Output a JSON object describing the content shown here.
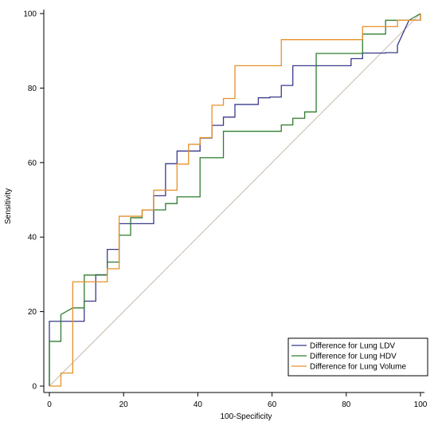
{
  "chart_data": {
    "type": "line",
    "title": "",
    "xlabel": "100-Specificity",
    "ylabel": "Sensitivity",
    "xlim": [
      0,
      100
    ],
    "ylim": [
      0,
      100
    ],
    "x_ticks": [
      0,
      20,
      40,
      60,
      80,
      100
    ],
    "y_ticks": [
      0,
      20,
      40,
      60,
      80,
      100
    ],
    "grid": false,
    "legend_position": "bottom-right",
    "reference_line": {
      "from": [
        0,
        0
      ],
      "to": [
        100,
        100
      ],
      "color": "#c8b8a8"
    },
    "series": [
      {
        "name": "Difference for Lung LDV",
        "color": "#3a3a8c",
        "points": [
          [
            0,
            0
          ],
          [
            0,
            17.4
          ],
          [
            9.4,
            17.4
          ],
          [
            9.4,
            22.8
          ],
          [
            12.5,
            22.8
          ],
          [
            12.5,
            29.9
          ],
          [
            15.6,
            29.9
          ],
          [
            15.6,
            36.7
          ],
          [
            18.8,
            36.7
          ],
          [
            18.8,
            43.6
          ],
          [
            28.1,
            43.6
          ],
          [
            28.1,
            51.1
          ],
          [
            31.3,
            51.1
          ],
          [
            31.3,
            59.7
          ],
          [
            34.4,
            59.7
          ],
          [
            34.4,
            63.1
          ],
          [
            40.6,
            63.1
          ],
          [
            40.6,
            66.6
          ],
          [
            43.8,
            66.6
          ],
          [
            43.8,
            70.0
          ],
          [
            46.9,
            70.0
          ],
          [
            46.9,
            72.2
          ],
          [
            50.0,
            72.2
          ],
          [
            50.0,
            75.6
          ],
          [
            56.3,
            75.6
          ],
          [
            56.3,
            77.4
          ],
          [
            59.4,
            77.4
          ],
          [
            59.4,
            77.6
          ],
          [
            62.5,
            77.6
          ],
          [
            62.5,
            80.7
          ],
          [
            65.6,
            80.7
          ],
          [
            65.6,
            86.0
          ],
          [
            81.3,
            86.0
          ],
          [
            81.3,
            87.9
          ],
          [
            84.4,
            87.9
          ],
          [
            84.4,
            89.4
          ],
          [
            90.6,
            89.4
          ],
          [
            90.6,
            89.5
          ],
          [
            93.8,
            89.5
          ],
          [
            93.8,
            91.5
          ],
          [
            96.9,
            98.2
          ],
          [
            100,
            98.2
          ],
          [
            100,
            100
          ]
        ]
      },
      {
        "name": "Difference for Lung HDV",
        "color": "#2e7d2e",
        "points": [
          [
            0,
            0
          ],
          [
            0,
            12.0
          ],
          [
            3.1,
            12.0
          ],
          [
            3.1,
            19.2
          ],
          [
            6.3,
            21.0
          ],
          [
            9.4,
            21.0
          ],
          [
            9.4,
            29.8
          ],
          [
            15.6,
            29.8
          ],
          [
            15.6,
            33.3
          ],
          [
            18.8,
            33.3
          ],
          [
            18.8,
            40.5
          ],
          [
            21.9,
            40.5
          ],
          [
            21.9,
            45.2
          ],
          [
            25.0,
            45.2
          ],
          [
            25.0,
            47.3
          ],
          [
            31.3,
            47.3
          ],
          [
            31.3,
            49.0
          ],
          [
            34.4,
            49.0
          ],
          [
            34.4,
            50.8
          ],
          [
            40.6,
            50.8
          ],
          [
            40.6,
            61.3
          ],
          [
            46.9,
            61.3
          ],
          [
            46.9,
            68.4
          ],
          [
            62.5,
            68.4
          ],
          [
            62.5,
            70.1
          ],
          [
            65.6,
            70.1
          ],
          [
            65.6,
            71.9
          ],
          [
            68.8,
            71.9
          ],
          [
            68.8,
            73.6
          ],
          [
            71.9,
            73.6
          ],
          [
            71.9,
            89.3
          ],
          [
            84.4,
            89.3
          ],
          [
            84.4,
            94.5
          ],
          [
            90.6,
            94.5
          ],
          [
            90.6,
            98.2
          ],
          [
            96.9,
            98.2
          ],
          [
            100,
            100
          ]
        ]
      },
      {
        "name": "Difference for Lung Volume",
        "color": "#e8902a",
        "points": [
          [
            0,
            0
          ],
          [
            3.1,
            0
          ],
          [
            3.1,
            3.5
          ],
          [
            6.3,
            3.5
          ],
          [
            6.3,
            28.0
          ],
          [
            15.6,
            28.0
          ],
          [
            15.6,
            31.5
          ],
          [
            18.8,
            31.5
          ],
          [
            18.8,
            45.6
          ],
          [
            25.0,
            45.6
          ],
          [
            25.0,
            47.3
          ],
          [
            28.1,
            47.3
          ],
          [
            28.1,
            52.6
          ],
          [
            34.4,
            52.6
          ],
          [
            34.4,
            59.6
          ],
          [
            37.5,
            59.6
          ],
          [
            37.5,
            64.9
          ],
          [
            40.6,
            64.9
          ],
          [
            40.6,
            66.7
          ],
          [
            43.8,
            66.7
          ],
          [
            43.8,
            75.4
          ],
          [
            46.9,
            75.4
          ],
          [
            46.9,
            77.2
          ],
          [
            50.0,
            77.2
          ],
          [
            50.0,
            86.0
          ],
          [
            62.5,
            86.0
          ],
          [
            62.5,
            93.0
          ],
          [
            84.4,
            93.0
          ],
          [
            84.4,
            96.5
          ],
          [
            93.8,
            96.5
          ],
          [
            93.8,
            98.2
          ],
          [
            100,
            98.2
          ],
          [
            100,
            100
          ]
        ]
      }
    ]
  }
}
